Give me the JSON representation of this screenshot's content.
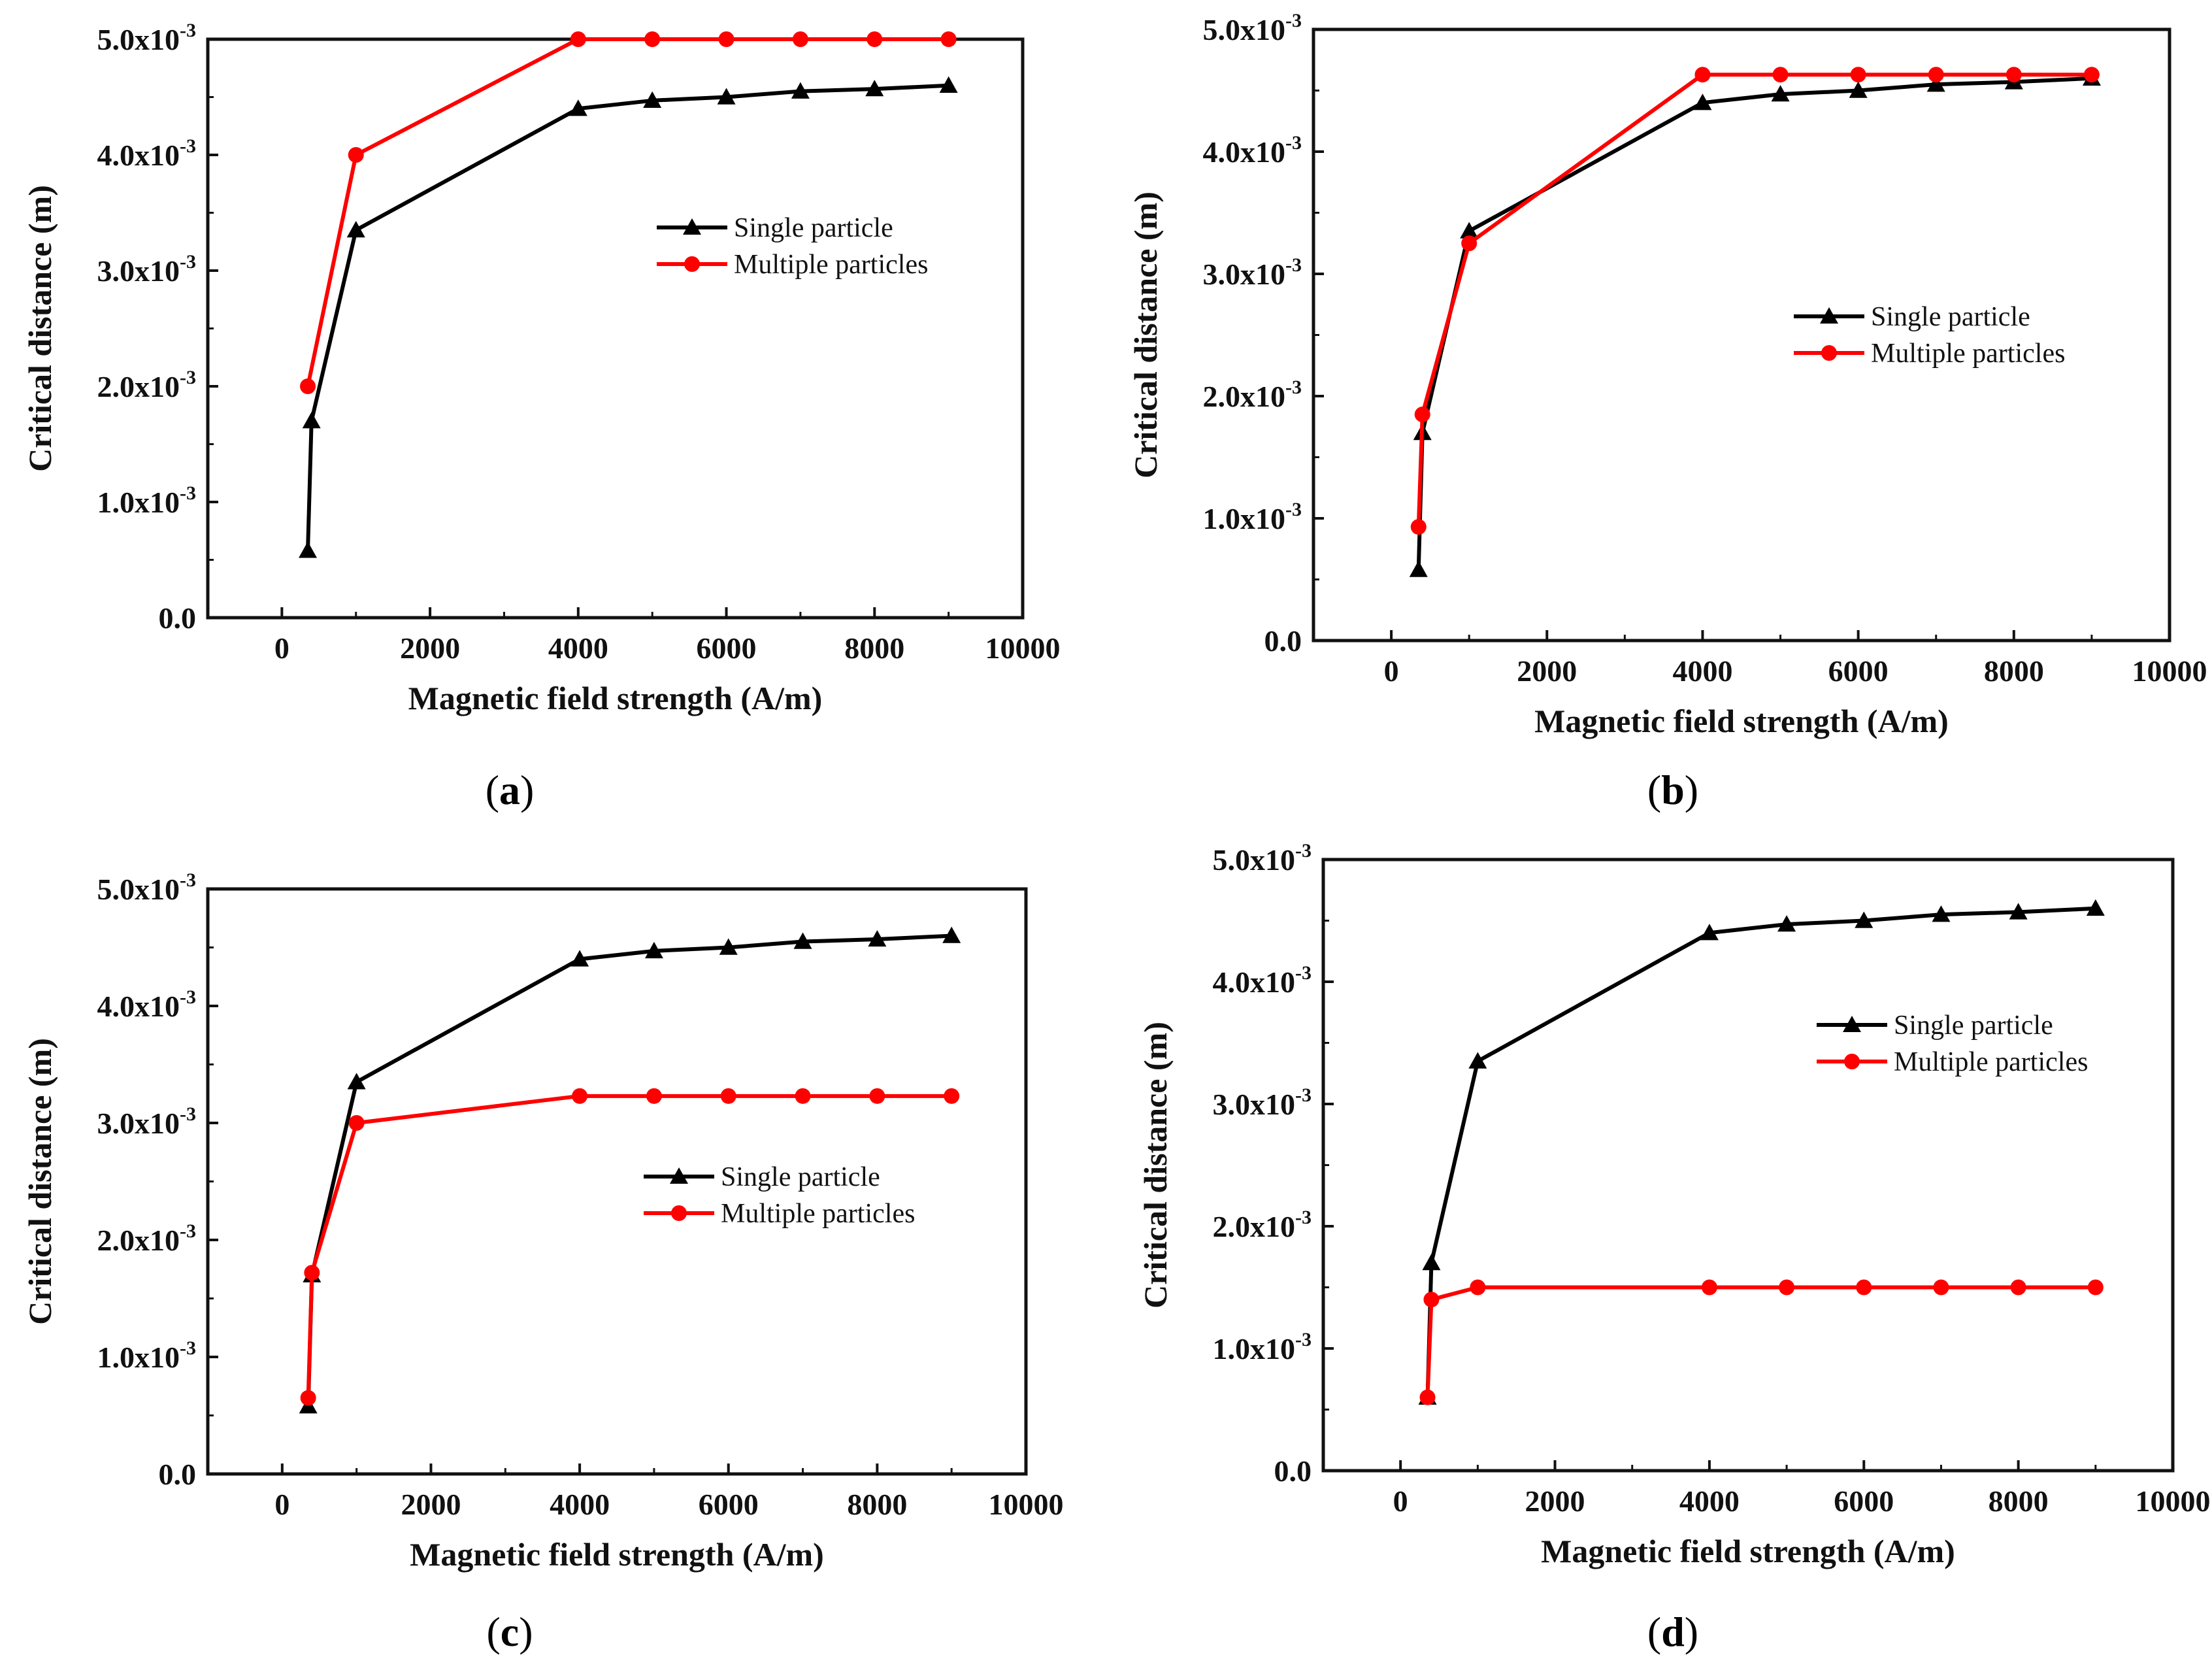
{
  "figure": {
    "colors": {
      "single": "#000000",
      "multiple": "#ff0000",
      "axis": "#111111"
    }
  },
  "chart_data": [
    {
      "type": "line",
      "panel_label": "a",
      "xlabel": "Magnetic field strength (A/m)",
      "ylabel": "Critical distance (m)",
      "xlim": [
        -1000,
        10000
      ],
      "ylim": [
        0,
        0.005
      ],
      "xticks": [
        0,
        2000,
        4000,
        6000,
        8000,
        10000
      ],
      "xtick_labels": [
        "0",
        "2000",
        "4000",
        "6000",
        "8000",
        "10000"
      ],
      "yticks": [
        0,
        0.001,
        0.002,
        0.003,
        0.004,
        0.005
      ],
      "ytick_labels": [
        "0.0",
        "1.0x10-3",
        "2.0x10-3",
        "3.0x10-3",
        "4.0x10-3",
        "5.0x10-3"
      ],
      "legend_position": "center-right",
      "series": [
        {
          "name": "Single particle",
          "marker": "triangle",
          "color": "#000000",
          "x": [
            350,
            400,
            1000,
            4000,
            5000,
            6000,
            7000,
            8000,
            9000
          ],
          "y": [
            0.00058,
            0.0017,
            0.00335,
            0.0044,
            0.00447,
            0.0045,
            0.00455,
            0.00457,
            0.0046
          ]
        },
        {
          "name": "Multiple particles",
          "marker": "circle",
          "color": "#ff0000",
          "x": [
            350,
            1000,
            4000,
            5000,
            6000,
            7000,
            8000,
            9000
          ],
          "y": [
            0.002,
            0.004,
            0.005,
            0.005,
            0.005,
            0.005,
            0.005,
            0.005
          ]
        }
      ]
    },
    {
      "type": "line",
      "panel_label": "b",
      "xlabel": "Magnetic field strength (A/m)",
      "ylabel": "Critical distance (m)",
      "xlim": [
        -1000,
        10000
      ],
      "ylim": [
        0,
        0.005
      ],
      "xticks": [
        0,
        2000,
        4000,
        6000,
        8000,
        10000
      ],
      "xtick_labels": [
        "0",
        "2000",
        "4000",
        "6000",
        "8000",
        "10000"
      ],
      "yticks": [
        0,
        0.001,
        0.002,
        0.003,
        0.004,
        0.005
      ],
      "ytick_labels": [
        "0.0",
        "1.0x10-3",
        "2.0x10-3",
        "3.0x10-3",
        "4.0x10-3",
        "5.0x10-3"
      ],
      "legend_position": "center-right",
      "series": [
        {
          "name": "Single particle",
          "marker": "triangle",
          "color": "#000000",
          "x": [
            350,
            400,
            1000,
            4000,
            5000,
            6000,
            7000,
            8000,
            9000
          ],
          "y": [
            0.00058,
            0.0017,
            0.00335,
            0.0044,
            0.00447,
            0.0045,
            0.00455,
            0.00457,
            0.0046
          ]
        },
        {
          "name": "Multiple particles",
          "marker": "circle",
          "color": "#ff0000",
          "x": [
            350,
            400,
            1000,
            4000,
            5000,
            6000,
            7000,
            8000,
            9000
          ],
          "y": [
            0.00093,
            0.00185,
            0.00325,
            0.00463,
            0.00463,
            0.00463,
            0.00463,
            0.00463,
            0.00463
          ]
        }
      ]
    },
    {
      "type": "line",
      "panel_label": "c",
      "xlabel": "Magnetic field strength (A/m)",
      "ylabel": "Critical distance (m)",
      "xlim": [
        -1000,
        10000
      ],
      "ylim": [
        0,
        0.005
      ],
      "xticks": [
        0,
        2000,
        4000,
        6000,
        8000,
        10000
      ],
      "xtick_labels": [
        "0",
        "2000",
        "4000",
        "6000",
        "8000",
        "10000"
      ],
      "yticks": [
        0,
        0.001,
        0.002,
        0.003,
        0.004,
        0.005
      ],
      "ytick_labels": [
        "0.0",
        "1.0x10-3",
        "2.0x10-3",
        "3.0x10-3",
        "4.0x10-3",
        "5.0x10-3"
      ],
      "legend_position": "center-right",
      "series": [
        {
          "name": "Single particle",
          "marker": "triangle",
          "color": "#000000",
          "x": [
            350,
            400,
            1000,
            4000,
            5000,
            6000,
            7000,
            8000,
            9000
          ],
          "y": [
            0.00058,
            0.0017,
            0.00335,
            0.0044,
            0.00447,
            0.0045,
            0.00455,
            0.00457,
            0.0046
          ]
        },
        {
          "name": "Multiple particles",
          "marker": "circle",
          "color": "#ff0000",
          "x": [
            350,
            400,
            1000,
            4000,
            5000,
            6000,
            7000,
            8000,
            9000
          ],
          "y": [
            0.00065,
            0.00172,
            0.003,
            0.00323,
            0.00323,
            0.00323,
            0.00323,
            0.00323,
            0.00323
          ]
        }
      ]
    },
    {
      "type": "line",
      "panel_label": "d",
      "xlabel": "Magnetic field strength (A/m)",
      "ylabel": "Critical distance (m)",
      "xlim": [
        -1000,
        10000
      ],
      "ylim": [
        0,
        0.005
      ],
      "xticks": [
        0,
        2000,
        4000,
        6000,
        8000,
        10000
      ],
      "xtick_labels": [
        "0",
        "2000",
        "4000",
        "6000",
        "8000",
        "10000"
      ],
      "yticks": [
        0,
        0.001,
        0.002,
        0.003,
        0.004,
        0.005
      ],
      "ytick_labels": [
        "0.0",
        "1.0x10-3",
        "2.0x10-3",
        "3.0x10-3",
        "4.0x10-3",
        "5.0x10-3"
      ],
      "legend_position": "center-right",
      "series": [
        {
          "name": "Single particle",
          "marker": "triangle",
          "color": "#000000",
          "x": [
            350,
            400,
            1000,
            4000,
            5000,
            6000,
            7000,
            8000,
            9000
          ],
          "y": [
            0.0006,
            0.0017,
            0.00335,
            0.0044,
            0.00447,
            0.0045,
            0.00455,
            0.00457,
            0.0046
          ]
        },
        {
          "name": "Multiple particles",
          "marker": "circle",
          "color": "#ff0000",
          "x": [
            350,
            400,
            1000,
            4000,
            5000,
            6000,
            7000,
            8000,
            9000
          ],
          "y": [
            0.0006,
            0.0014,
            0.0015,
            0.0015,
            0.0015,
            0.0015,
            0.0015,
            0.0015,
            0.0015
          ]
        }
      ]
    }
  ]
}
